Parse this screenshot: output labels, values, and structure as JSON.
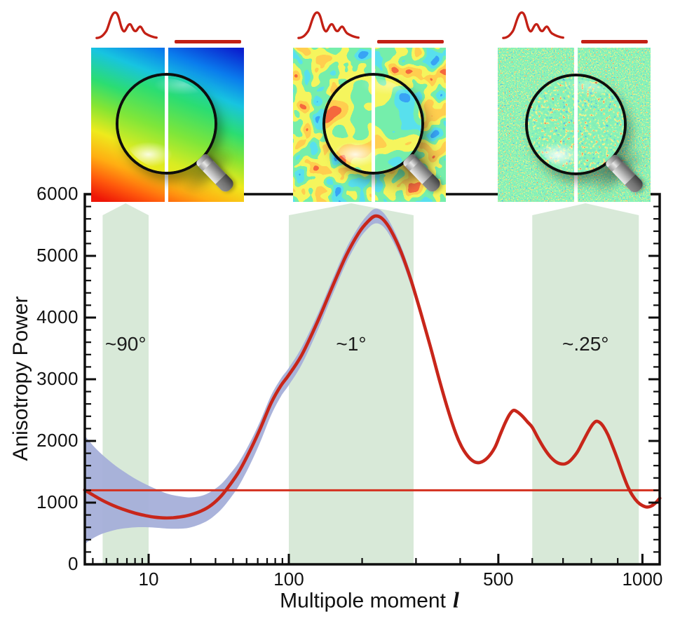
{
  "axes": {
    "y_title": "Anisotropy Power",
    "x_title_text": "Multipole moment",
    "x_title_symbol": "l",
    "y_tick_labels": [
      "0",
      "1000",
      "2000",
      "3000",
      "4000",
      "5000",
      "6000"
    ],
    "x_tick_labels": [
      "10",
      "100",
      "500",
      "1000"
    ]
  },
  "colors": {
    "curve_red": "#c8261a",
    "plateau_red": "#d4301f",
    "sketch_red": "#c32015",
    "band_green": "#d8e9d8",
    "variance_blue": "#a5afd9",
    "axis_black": "#0d0d0d"
  },
  "chart_data": {
    "type": "line",
    "title": "",
    "xlabel": "Multipole moment l",
    "ylabel": "Anisotropy Power",
    "x_scale": "logarithmic for l<=100, compressed power-law (l^0.42) for l>100",
    "xlim": [
      3.5,
      1074
    ],
    "ylim": [
      0,
      6000
    ],
    "grid": false,
    "x_major_ticks": [
      10,
      100,
      500,
      1000
    ],
    "x_minor_ticks": [
      4,
      5,
      6,
      7,
      8,
      9,
      20,
      30,
      40,
      50,
      60,
      70,
      80,
      90,
      200,
      300,
      400,
      600,
      700,
      800,
      900
    ],
    "y_major_tick_step": 1000,
    "y_minor_tick_step": 200,
    "series": [
      {
        "name": "CMB acoustic power spectrum (best-fit theory)",
        "color": "#c8261a",
        "points": [
          [
            3.5,
            1205
          ],
          [
            4,
            1125
          ],
          [
            4.6,
            1045
          ],
          [
            5.5,
            960
          ],
          [
            6.5,
            895
          ],
          [
            8,
            830
          ],
          [
            9.5,
            790
          ],
          [
            11,
            765
          ],
          [
            13,
            752
          ],
          [
            15,
            756
          ],
          [
            17.5,
            775
          ],
          [
            20,
            805
          ],
          [
            24,
            870
          ],
          [
            28,
            960
          ],
          [
            33,
            1110
          ],
          [
            38,
            1290
          ],
          [
            44,
            1500
          ],
          [
            52,
            1810
          ],
          [
            62,
            2180
          ],
          [
            75,
            2620
          ],
          [
            88,
            2900
          ],
          [
            100,
            3070
          ],
          [
            115,
            3400
          ],
          [
            135,
            3950
          ],
          [
            155,
            4510
          ],
          [
            175,
            5010
          ],
          [
            195,
            5380
          ],
          [
            210,
            5560
          ],
          [
            222,
            5645
          ],
          [
            235,
            5600
          ],
          [
            250,
            5420
          ],
          [
            270,
            5060
          ],
          [
            290,
            4600
          ],
          [
            310,
            4080
          ],
          [
            330,
            3550
          ],
          [
            350,
            3010
          ],
          [
            370,
            2520
          ],
          [
            390,
            2110
          ],
          [
            405,
            1890
          ],
          [
            420,
            1745
          ],
          [
            435,
            1665
          ],
          [
            450,
            1650
          ],
          [
            470,
            1725
          ],
          [
            490,
            1890
          ],
          [
            505,
            2100
          ],
          [
            520,
            2300
          ],
          [
            532,
            2430
          ],
          [
            543,
            2495
          ],
          [
            555,
            2470
          ],
          [
            570,
            2400
          ],
          [
            585,
            2310
          ],
          [
            600,
            2220
          ],
          [
            620,
            2030
          ],
          [
            640,
            1860
          ],
          [
            660,
            1730
          ],
          [
            680,
            1650
          ],
          [
            700,
            1625
          ],
          [
            715,
            1645
          ],
          [
            730,
            1705
          ],
          [
            750,
            1825
          ],
          [
            770,
            1995
          ],
          [
            790,
            2165
          ],
          [
            805,
            2270
          ],
          [
            818,
            2318
          ],
          [
            832,
            2295
          ],
          [
            846,
            2225
          ],
          [
            862,
            2100
          ],
          [
            880,
            1915
          ],
          [
            900,
            1695
          ],
          [
            920,
            1465
          ],
          [
            940,
            1260
          ],
          [
            960,
            1110
          ],
          [
            980,
            1010
          ],
          [
            1000,
            952
          ],
          [
            1020,
            928
          ],
          [
            1040,
            950
          ],
          [
            1058,
            1005
          ],
          [
            1074,
            1072
          ]
        ]
      },
      {
        "name": "flat large-scale plateau line",
        "color": "#d4301f",
        "points": [
          [
            3.5,
            1200
          ],
          [
            1074,
            1200
          ]
        ]
      }
    ],
    "uncertainty_band": {
      "name": "cosmic variance band",
      "color": "#a5afd9",
      "points": [
        [
          3.5,
          330,
          2085
        ],
        [
          4,
          420,
          1930
        ],
        [
          4.6,
          490,
          1790
        ],
        [
          5.5,
          545,
          1640
        ],
        [
          6.5,
          580,
          1520
        ],
        [
          8,
          600,
          1390
        ],
        [
          9.5,
          602,
          1300
        ],
        [
          11,
          596,
          1232
        ],
        [
          13,
          582,
          1160
        ],
        [
          15,
          576,
          1120
        ],
        [
          17.5,
          580,
          1096
        ],
        [
          20,
          600,
          1085
        ],
        [
          24,
          662,
          1112
        ],
        [
          28,
          748,
          1182
        ],
        [
          33,
          892,
          1302
        ],
        [
          38,
          1062,
          1462
        ],
        [
          44,
          1272,
          1655
        ],
        [
          52,
          1582,
          1945
        ],
        [
          62,
          1962,
          2305
        ],
        [
          75,
          2425,
          2745
        ],
        [
          88,
          2725,
          3015
        ],
        [
          100,
          2905,
          3185
        ],
        [
          115,
          3245,
          3525
        ],
        [
          135,
          3805,
          4065
        ],
        [
          155,
          4375,
          4625
        ],
        [
          175,
          4885,
          5125
        ],
        [
          195,
          5265,
          5485
        ],
        [
          210,
          5445,
          5675
        ],
        [
          222,
          5525,
          5765
        ],
        [
          235,
          5485,
          5715
        ],
        [
          250,
          5305,
          5525
        ],
        [
          270,
          4955,
          5155
        ],
        [
          290,
          4505,
          4695
        ],
        [
          310,
          3995,
          4155
        ],
        [
          330,
          3475,
          3615
        ],
        [
          350,
          2945,
          3065
        ],
        [
          370,
          2465,
          2565
        ],
        [
          390,
          2065,
          2145
        ],
        [
          405,
          1850,
          1920
        ],
        [
          420,
          1708,
          1772
        ],
        [
          435,
          1632,
          1690
        ],
        [
          450,
          1622,
          1676
        ]
      ]
    },
    "highlight_bands": [
      {
        "label": "~90°",
        "l_min": 4.7,
        "l_max": 10
      },
      {
        "label": "~1°",
        "l_min": 100,
        "l_max": 295
      },
      {
        "label": "~.25°",
        "l_min": 600,
        "l_max": 985
      }
    ],
    "band_color": "#d8e9d8"
  },
  "insets": [
    {
      "name": "sky-map-largest-scales",
      "style": "smooth rainbow gradient"
    },
    {
      "name": "sky-map-degree-scales",
      "style": "mottled hot and cold blobs"
    },
    {
      "name": "sky-map-smallest-scales",
      "style": "fine green speckle"
    }
  ]
}
